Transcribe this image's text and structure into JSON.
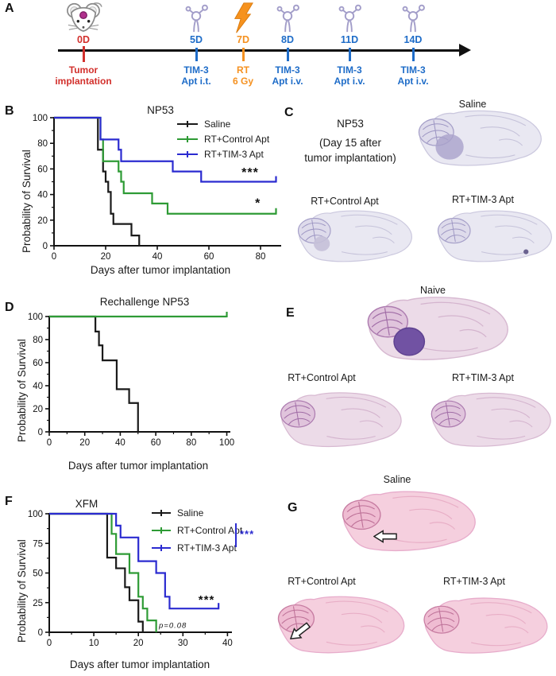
{
  "panels": {
    "a": "A",
    "b": "B",
    "c": "C",
    "d": "D",
    "e": "E",
    "f": "F",
    "g": "G"
  },
  "colors": {
    "saline": "#1a1a1a",
    "control_apt": "#2e9b35",
    "tim3_apt": "#2b2bd0",
    "timeline_red": "#d2302c",
    "timeline_blue": "#1e6cc8",
    "timeline_orange": "#f59120"
  },
  "timeline": {
    "events": [
      {
        "day": "0D",
        "label1": "Tumor",
        "label2": "implantation",
        "icon": "mouse-tumor-implantation"
      },
      {
        "day": "5D",
        "label1": "TIM-3",
        "label2": "Apt i.t.",
        "icon": "aptamer"
      },
      {
        "day": "7D",
        "label1": "RT",
        "label2": "6 Gy",
        "icon": "lightning-radiotherapy"
      },
      {
        "day": "8D",
        "label1": "TIM-3",
        "label2": "Apt i.v.",
        "icon": "aptamer"
      },
      {
        "day": "11D",
        "label1": "TIM-3",
        "label2": "Apt i.v.",
        "icon": "aptamer"
      },
      {
        "day": "14D",
        "label1": "TIM-3",
        "label2": "Apt i.v.",
        "icon": "aptamer"
      }
    ]
  },
  "chart_data": [
    {
      "id": "chart-b",
      "type": "line",
      "subtype": "kaplan-meier",
      "title": "NP53",
      "xlabel": "Days after tumor implantation",
      "ylabel": "Probability of Survival",
      "xlim": [
        0,
        88
      ],
      "ylim": [
        0,
        100
      ],
      "xticks": [
        0,
        20,
        40,
        60,
        80
      ],
      "yticks": [
        0,
        20,
        40,
        60,
        80,
        100
      ],
      "yminor": [
        10,
        30,
        50,
        70,
        90
      ],
      "legend_position": "top-right",
      "series": [
        {
          "name": "Saline",
          "color": "#1a1a1a",
          "points": [
            [
              0,
              100
            ],
            [
              17,
              100
            ],
            [
              17,
              75
            ],
            [
              19,
              75
            ],
            [
              19,
              58
            ],
            [
              20,
              58
            ],
            [
              20,
              50
            ],
            [
              21,
              50
            ],
            [
              21,
              42
            ],
            [
              22,
              42
            ],
            [
              22,
              25
            ],
            [
              23,
              25
            ],
            [
              23,
              17
            ],
            [
              30,
              17
            ],
            [
              30,
              8
            ],
            [
              33,
              8
            ],
            [
              33,
              0
            ]
          ],
          "censor_at_end": false
        },
        {
          "name": "RT+Control Apt",
          "color": "#2e9b35",
          "points": [
            [
              0,
              100
            ],
            [
              18,
              100
            ],
            [
              18,
              83
            ],
            [
              19,
              83
            ],
            [
              19,
              66
            ],
            [
              25,
              66
            ],
            [
              25,
              58
            ],
            [
              26,
              58
            ],
            [
              26,
              50
            ],
            [
              27,
              50
            ],
            [
              27,
              41
            ],
            [
              38,
              41
            ],
            [
              38,
              33
            ],
            [
              44,
              33
            ],
            [
              44,
              25
            ],
            [
              86,
              25
            ]
          ],
          "censor_at_end": true
        },
        {
          "name": "RT+TIM-3 Apt",
          "color": "#2b2bd0",
          "points": [
            [
              0,
              100
            ],
            [
              18,
              100
            ],
            [
              18,
              83
            ],
            [
              25,
              83
            ],
            [
              25,
              75
            ],
            [
              26,
              75
            ],
            [
              26,
              66
            ],
            [
              46,
              66
            ],
            [
              46,
              58
            ],
            [
              57,
              58
            ],
            [
              57,
              50
            ],
            [
              86,
              50
            ]
          ],
          "censor_at_end": true
        }
      ],
      "annotations": [
        {
          "text": "***",
          "x": 76,
          "y": 54,
          "size": 16
        },
        {
          "text": "*",
          "x": 79,
          "y": 30,
          "size": 16
        }
      ]
    },
    {
      "id": "chart-d",
      "type": "line",
      "subtype": "kaplan-meier",
      "title": "Rechallenge NP53",
      "xlabel": "Days after tumor implantation",
      "ylabel": "Probability of Survival",
      "xlim": [
        0,
        102
      ],
      "ylim": [
        0,
        100
      ],
      "xticks": [
        0,
        20,
        40,
        60,
        80,
        100
      ],
      "xminor": [
        10,
        30,
        50,
        70,
        90
      ],
      "yticks": [
        0,
        20,
        40,
        60,
        80,
        100
      ],
      "yminor": [
        10,
        30,
        50,
        70,
        90
      ],
      "legend_position": "none",
      "series": [
        {
          "name": "Saline",
          "color": "#1a1a1a",
          "points": [
            [
              0,
              100
            ],
            [
              26,
              100
            ],
            [
              26,
              87
            ],
            [
              28,
              87
            ],
            [
              28,
              75
            ],
            [
              30,
              75
            ],
            [
              30,
              62
            ],
            [
              38,
              62
            ],
            [
              38,
              37
            ],
            [
              45,
              37
            ],
            [
              45,
              25
            ],
            [
              50,
              25
            ],
            [
              50,
              0
            ]
          ],
          "censor_at_end": false
        },
        {
          "name": "RT+TIM-3 Apt",
          "color": "#2e9b35",
          "points": [
            [
              0,
              100
            ],
            [
              100,
              100
            ]
          ],
          "censor_at_end": true
        }
      ],
      "annotations": []
    },
    {
      "id": "chart-f",
      "type": "line",
      "subtype": "kaplan-meier",
      "title": "XFM",
      "xlabel": "Days after tumor implantation",
      "ylabel": "Probability of Survival",
      "xlim": [
        0,
        41
      ],
      "ylim": [
        0,
        100
      ],
      "xticks": [
        0,
        10,
        20,
        30,
        40
      ],
      "xminor": [
        5,
        15,
        25,
        35
      ],
      "yticks": [
        0,
        25,
        50,
        75,
        100
      ],
      "yminor": [
        12.5,
        37.5,
        62.5,
        87.5
      ],
      "legend_position": "top-right",
      "legend_stars": "***",
      "series": [
        {
          "name": "Saline",
          "color": "#1a1a1a",
          "points": [
            [
              0,
              100
            ],
            [
              13,
              100
            ],
            [
              13,
              63
            ],
            [
              15,
              63
            ],
            [
              15,
              54
            ],
            [
              17,
              54
            ],
            [
              17,
              38
            ],
            [
              18,
              38
            ],
            [
              18,
              27
            ],
            [
              20,
              27
            ],
            [
              20,
              9
            ],
            [
              21,
              9
            ],
            [
              21,
              0
            ]
          ],
          "censor_at_end": false
        },
        {
          "name": "RT+Control Apt",
          "color": "#2e9b35",
          "points": [
            [
              0,
              100
            ],
            [
              14,
              100
            ],
            [
              14,
              83
            ],
            [
              15,
              83
            ],
            [
              15,
              66
            ],
            [
              18,
              66
            ],
            [
              18,
              50
            ],
            [
              20,
              50
            ],
            [
              20,
              30
            ],
            [
              21,
              30
            ],
            [
              21,
              20
            ],
            [
              22,
              20
            ],
            [
              22,
              10
            ],
            [
              24,
              10
            ],
            [
              24,
              0
            ]
          ],
          "censor_at_end": false
        },
        {
          "name": "RT+TIM-3 Apt",
          "color": "#2b2bd0",
          "points": [
            [
              0,
              100
            ],
            [
              15,
              100
            ],
            [
              15,
              90
            ],
            [
              16,
              90
            ],
            [
              16,
              80
            ],
            [
              20,
              80
            ],
            [
              20,
              60
            ],
            [
              24,
              60
            ],
            [
              24,
              50
            ],
            [
              26,
              50
            ],
            [
              26,
              30
            ],
            [
              27,
              30
            ],
            [
              27,
              20
            ],
            [
              38,
              20
            ]
          ],
          "censor_at_end": true
        }
      ],
      "annotations": [
        {
          "text": "***",
          "x": 35.3,
          "y": 24,
          "size": 15
        },
        {
          "text": "p=0.08",
          "x": 24.6,
          "y": 3.8,
          "size": 9.5,
          "italic": true,
          "bold": false,
          "anchor": "start"
        }
      ]
    }
  ],
  "histology": {
    "c": {
      "context_line1": "NP53",
      "context_line2": "(Day 15 after",
      "context_line3": "tumor implantation)",
      "top_label": "Saline",
      "bottom_left_label": "RT+Control Apt",
      "bottom_right_label": "RT+TIM-3 Apt"
    },
    "e": {
      "top_label": "Naive",
      "bottom_left_label": "RT+Control Apt",
      "bottom_right_label": "RT+TIM-3 Apt"
    },
    "g": {
      "top_label": "Saline",
      "bottom_left_label": "RT+Control Apt",
      "bottom_right_label": "RT+TIM-3 Apt"
    }
  }
}
